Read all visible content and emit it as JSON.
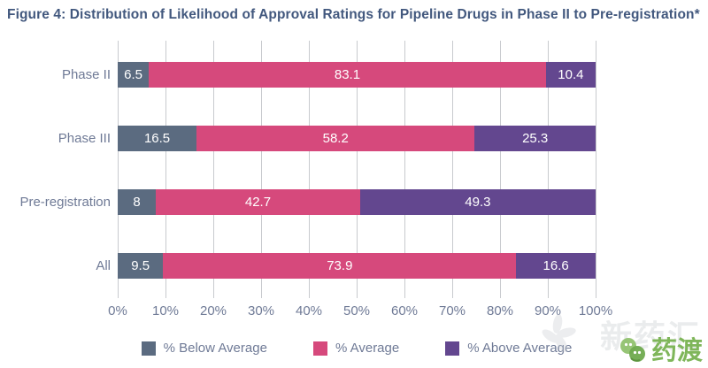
{
  "title": "Figure 4: Distribution of Likelihood of Approval Ratings for Pipeline Drugs in Phase II to Pre-registration*",
  "chart_data": {
    "type": "bar",
    "orientation": "horizontal",
    "stacked": true,
    "title": "Figure 4: Distribution of Likelihood of Approval Ratings for Pipeline Drugs in Phase II to Pre-registration*",
    "categories": [
      "Phase II",
      "Phase III",
      "Pre-registration",
      "All"
    ],
    "series": [
      {
        "name": "% Below Average",
        "color": "#5b6b80",
        "values": [
          6.5,
          16.5,
          8,
          9.5
        ]
      },
      {
        "name": "% Average",
        "color": "#d6497c",
        "values": [
          83.1,
          58.2,
          42.7,
          73.9
        ]
      },
      {
        "name": "% Above Average",
        "color": "#63478f",
        "values": [
          10.4,
          25.3,
          49.3,
          16.6
        ]
      }
    ],
    "x_ticks": [
      "0%",
      "10%",
      "20%",
      "30%",
      "40%",
      "50%",
      "60%",
      "70%",
      "80%",
      "90%",
      "100%"
    ],
    "xlim": [
      0,
      100
    ],
    "xlabel": "",
    "ylabel": "",
    "grid": "vertical-only",
    "legend_position": "bottom",
    "bar_value_labels": [
      [
        "6.5",
        "83.1",
        "10.4"
      ],
      [
        "16.5",
        "58.2",
        "25.3"
      ],
      [
        "8",
        "42.7",
        "49.3"
      ],
      [
        "9.5",
        "73.9",
        "16.6"
      ]
    ]
  },
  "colors": {
    "title_text": "#42587e",
    "axis_text": "#6f7a96",
    "gridline": "#c8cace",
    "bar_label_text": "#ffffff",
    "below_average": "#5b6b80",
    "average": "#d6497c",
    "above_average": "#63478f",
    "watermark_green": "#7fb65a"
  },
  "watermark": {
    "background_text": "新药汇",
    "logo_text": "药渡"
  }
}
